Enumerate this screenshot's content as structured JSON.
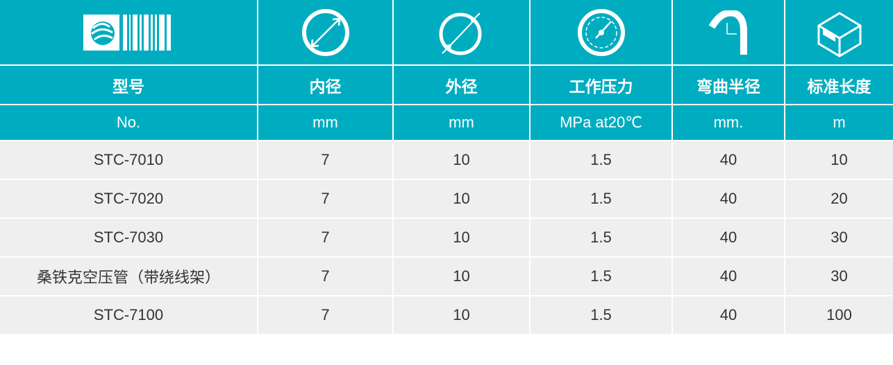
{
  "colors": {
    "header": "#00adc0",
    "row": "#efefef",
    "text": "#333333"
  },
  "icons": [
    "logo",
    "inner-diameter-icon",
    "outer-diameter-icon",
    "pressure-gauge-icon",
    "bend-radius-icon",
    "box-length-icon"
  ],
  "headers": {
    "labels": [
      "型号",
      "内径",
      "外径",
      "工作压力",
      "弯曲半径",
      "标准长度"
    ],
    "units": [
      "No.",
      "mm",
      "mm",
      "MPa at20℃",
      "mm.",
      "m"
    ]
  },
  "rows": [
    [
      "STC-7010",
      "7",
      "10",
      "1.5",
      "40",
      "10"
    ],
    [
      "STC-7020",
      "7",
      "10",
      "1.5",
      "40",
      "20"
    ],
    [
      "STC-7030",
      "7",
      "10",
      "1.5",
      "40",
      "30"
    ],
    [
      "桑铁克空压管（带绕线架）",
      "7",
      "10",
      "1.5",
      "40",
      "30"
    ],
    [
      "STC-7100",
      "7",
      "10",
      "1.5",
      "40",
      "100"
    ]
  ]
}
